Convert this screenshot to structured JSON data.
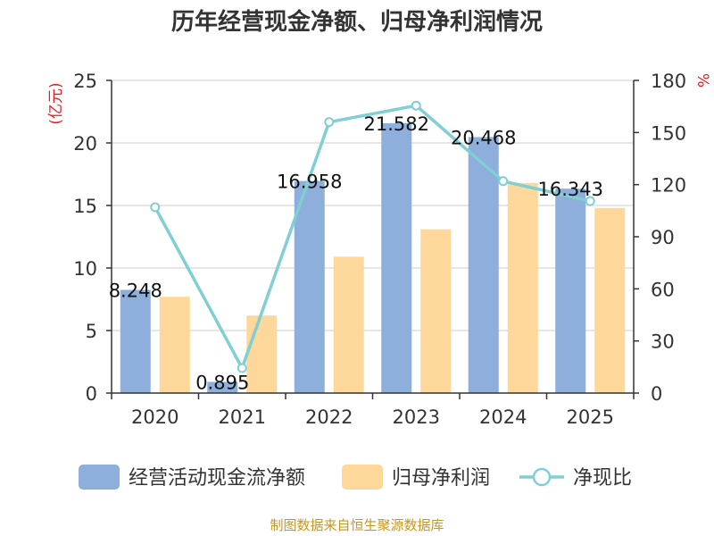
{
  "chart_data": {
    "type": "bar",
    "title": "历年经营现金净额、归母净利润情况",
    "source": "制图数据来自恒生聚源数据库",
    "categories": [
      "2020",
      "2021",
      "2022",
      "2023",
      "2024",
      "2025"
    ],
    "y_left": {
      "label": "(亿元)",
      "min": 0,
      "max": 25,
      "ticks": [
        "0",
        "5",
        "10",
        "15",
        "20",
        "25"
      ]
    },
    "y_right": {
      "label": "%",
      "min": 0,
      "max": 180,
      "ticks": [
        "0",
        "30",
        "60",
        "90",
        "120",
        "150",
        "180"
      ]
    },
    "series": [
      {
        "name": "经营活动现金流净额",
        "type": "bar",
        "axis": "left",
        "color": "#8eaedb",
        "values": [
          8.248,
          0.895,
          16.958,
          21.582,
          20.468,
          16.343
        ],
        "labels": [
          "8.248",
          "0.895",
          "16.958",
          "21.582",
          "20.468",
          "16.343"
        ]
      },
      {
        "name": "归母净利润",
        "type": "bar",
        "axis": "left",
        "color": "#fdd89a",
        "values": [
          7.7,
          6.2,
          10.9,
          13.1,
          16.8,
          14.8
        ]
      },
      {
        "name": "净现比",
        "type": "line",
        "axis": "right",
        "color": "#7fcfd3",
        "values": [
          107,
          14.4,
          156,
          165.5,
          122,
          110.5
        ]
      }
    ],
    "grid": true,
    "legend_position": "bottom"
  }
}
